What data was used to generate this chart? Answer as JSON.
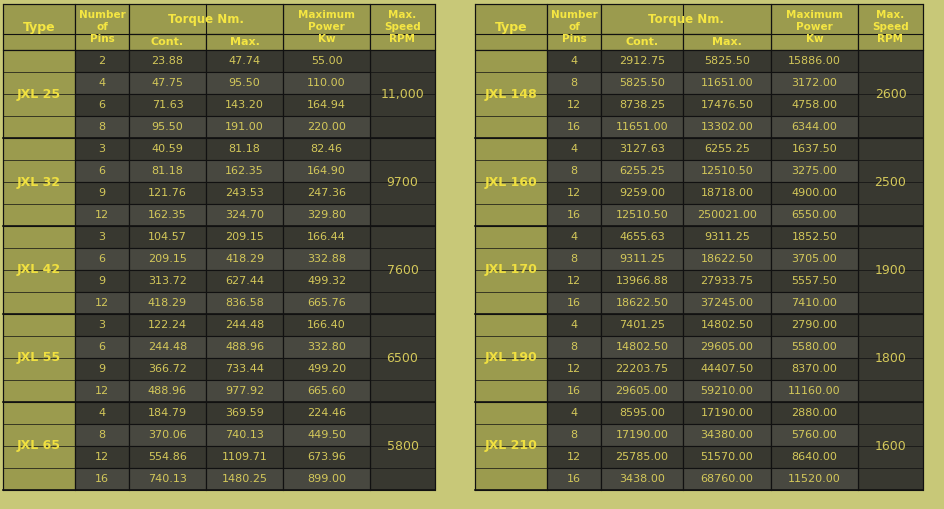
{
  "fig_bg": "#C8C878",
  "header_bg": "#9B9B4E",
  "header_text": "#F5E642",
  "data_bg_odd": "#383830",
  "data_bg_even": "#484840",
  "data_text": "#D4C85A",
  "type_bg": "#9B9B4E",
  "type_text": "#F0E040",
  "speed_bg_odd": "#484840",
  "speed_bg_even": "#585850",
  "speed_text": "#D4C85A",
  "border_color": "#222211",
  "left_table": {
    "types": [
      "JXL 25",
      "JXL 32",
      "JXL 42",
      "JXL 55",
      "JXL 65"
    ],
    "speeds": [
      "11,000",
      "9700",
      "7600",
      "6500",
      "5800"
    ],
    "rows": [
      [
        2,
        "23.88",
        "47.74",
        "55.00"
      ],
      [
        4,
        "47.75",
        "95.50",
        "110.00"
      ],
      [
        6,
        "71.63",
        "143.20",
        "164.94"
      ],
      [
        8,
        "95.50",
        "191.00",
        "220.00"
      ],
      [
        3,
        "40.59",
        "81.18",
        "82.46"
      ],
      [
        6,
        "81.18",
        "162.35",
        "164.90"
      ],
      [
        9,
        "121.76",
        "243.53",
        "247.36"
      ],
      [
        12,
        "162.35",
        "324.70",
        "329.80"
      ],
      [
        3,
        "104.57",
        "209.15",
        "166.44"
      ],
      [
        6,
        "209.15",
        "418.29",
        "332.88"
      ],
      [
        9,
        "313.72",
        "627.44",
        "499.32"
      ],
      [
        12,
        "418.29",
        "836.58",
        "665.76"
      ],
      [
        3,
        "122.24",
        "244.48",
        "166.40"
      ],
      [
        6,
        "244.48",
        "488.96",
        "332.80"
      ],
      [
        9,
        "366.72",
        "733.44",
        "499.20"
      ],
      [
        12,
        "488.96",
        "977.92",
        "665.60"
      ],
      [
        4,
        "184.79",
        "369.59",
        "224.46"
      ],
      [
        8,
        "370.06",
        "740.13",
        "449.50"
      ],
      [
        12,
        "554.86",
        "1109.71",
        "673.96"
      ],
      [
        16,
        "740.13",
        "1480.25",
        "899.00"
      ]
    ],
    "rows_per_type": [
      4,
      4,
      4,
      4,
      4
    ]
  },
  "right_table": {
    "types": [
      "JXL 148",
      "JXL 160",
      "JXL 170",
      "JXL 190",
      "JXL 210"
    ],
    "speeds": [
      "2600",
      "2500",
      "1900",
      "1800",
      "1600"
    ],
    "rows": [
      [
        4,
        "2912.75",
        "5825.50",
        "15886.00"
      ],
      [
        8,
        "5825.50",
        "11651.00",
        "3172.00"
      ],
      [
        12,
        "8738.25",
        "17476.50",
        "4758.00"
      ],
      [
        16,
        "11651.00",
        "13302.00",
        "6344.00"
      ],
      [
        4,
        "3127.63",
        "6255.25",
        "1637.50"
      ],
      [
        8,
        "6255.25",
        "12510.50",
        "3275.00"
      ],
      [
        12,
        "9259.00",
        "18718.00",
        "4900.00"
      ],
      [
        16,
        "12510.50",
        "250021.00",
        "6550.00"
      ],
      [
        4,
        "4655.63",
        "9311.25",
        "1852.50"
      ],
      [
        8,
        "9311.25",
        "18622.50",
        "3705.00"
      ],
      [
        12,
        "13966.88",
        "27933.75",
        "5557.50"
      ],
      [
        16,
        "18622.50",
        "37245.00",
        "7410.00"
      ],
      [
        4,
        "7401.25",
        "14802.50",
        "2790.00"
      ],
      [
        8,
        "14802.50",
        "29605.00",
        "5580.00"
      ],
      [
        12,
        "22203.75",
        "44407.50",
        "8370.00"
      ],
      [
        16,
        "29605.00",
        "59210.00",
        "11160.00"
      ],
      [
        4,
        "8595.00",
        "17190.00",
        "2880.00"
      ],
      [
        8,
        "17190.00",
        "34380.00",
        "5760.00"
      ],
      [
        12,
        "25785.00",
        "51570.00",
        "8640.00"
      ],
      [
        16,
        "3438.00",
        "68760.00",
        "11520.00"
      ]
    ],
    "rows_per_type": [
      4,
      4,
      4,
      4,
      4
    ]
  }
}
